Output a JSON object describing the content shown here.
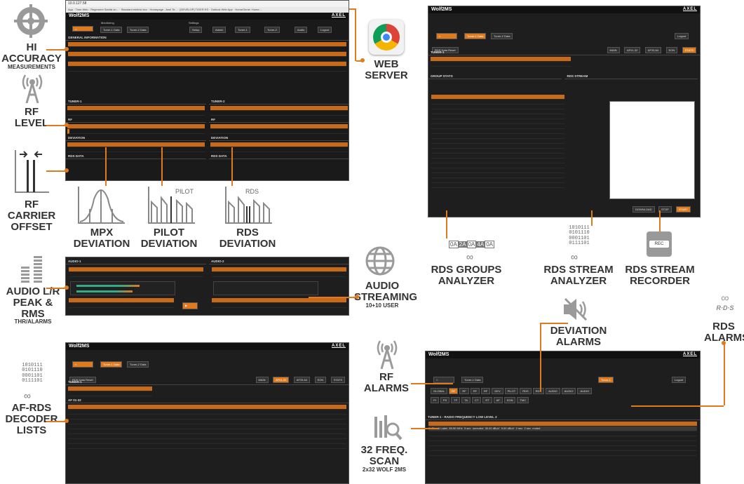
{
  "browser": {
    "url": "10.0.127.58",
    "bookmarks": [
      "App",
      "Time Web",
      "Regement Sanità on...",
      "Standard elettrici ecc",
      "Homepage - Axel Te...",
      "[DEVELOP] TIGER ES",
      "Outlook Web App",
      "HomeGenie: Home..."
    ]
  },
  "app": {
    "title": "Wolf2MS",
    "brand": "AXEL",
    "monitoring": "Monitoring",
    "settings": "Settings",
    "tabs": [
      "Tuner-1 Data",
      "Tuner-2 Data"
    ],
    "settings_buttons": [
      "Setup",
      "Admin",
      "Tuner-1",
      "Tuner-2",
      "Audio"
    ],
    "logout": "Logout"
  },
  "features": {
    "hi_accuracy": {
      "t": "HI",
      "t2": "ACCURACY",
      "s": "MEASUREMENTS"
    },
    "rf_level": {
      "t": "RF",
      "t2": "LEVEL"
    },
    "rf_carrier": {
      "t": "RF CARRIER",
      "t2": "OFFSET"
    },
    "mpx": {
      "t": "MPX",
      "t2": "DEVIATION"
    },
    "pilot": {
      "t": "PILOT",
      "t2": "DEVIATION",
      "label": "PILOT"
    },
    "rds": {
      "t": "RDS",
      "t2": "DEVIATION",
      "label": "RDS"
    },
    "audio_lr": {
      "t": "AUDIO L/R",
      "t2": "PEAK & RMS",
      "s": "THR/ALARMS"
    },
    "audio_streaming": {
      "t": "AUDIO",
      "t2": "STREAMING",
      "s": "10+10 USER"
    },
    "af_rds": {
      "t": "AF-RDS",
      "t2": "DECODER",
      "t3": "LISTS",
      "bits": "1010111\n0101110\n0001101\n0111101"
    },
    "web_server": {
      "t": "WEB",
      "t2": "SERVER"
    },
    "rds_groups": {
      "t": "RDS GROUPS",
      "t2": "ANALYZER",
      "chips": [
        "0A",
        "2A",
        "0A",
        "4A",
        "0A"
      ]
    },
    "rds_stream": {
      "t": "RDS STREAM",
      "t2": "ANALYZER",
      "bits": "1010111\n0101110\n0001101\n0111101"
    },
    "rds_recorder": {
      "t": "RDS STREAM",
      "t2": "RECORDER",
      "rec": "REC"
    },
    "deviation_alarms": {
      "t": "DEVIATION",
      "t2": "ALARMS"
    },
    "rds_alarms": {
      "t": "RDS",
      "t2": "ALARMS",
      "logo": "R·D·S"
    },
    "rf_alarms": {
      "t": "RF",
      "t2": "ALARMS"
    },
    "freq_scan": {
      "t": "32 FREQ.",
      "t2": "SCAN",
      "s": "2x32 WOLF 2MS"
    }
  },
  "panels": {
    "general": "GENERAL INFORMATION",
    "tuner1": "TUNER-1",
    "tuner2": "TUNER-2",
    "rf": "RF",
    "deviation": "DEVIATION",
    "rds_data": "RDS DATA",
    "audio1": "AUDIO-1",
    "audio2": "AUDIO-2",
    "group_stats": "GROUP STATS",
    "rds_stream": "RDS STREAM",
    "af": "AF 01-32",
    "alarms_title": "TUNER-1 - RADIO FREQUENCY LOW LEVEL 2",
    "rds_data_reset": "RDS Data Reset",
    "tabs_right": [
      "MAIN",
      "AF01-32",
      "AF33-64",
      "EON",
      "STATS"
    ],
    "status_badges": [
      "STEREO",
      "TUNED",
      "RDS"
    ],
    "download": "DOWNLOAD",
    "stop": "STOP",
    "start": "START",
    "alarm_tabs": [
      "GLOBAL",
      "RF",
      "RF",
      "RF",
      "RF",
      "DEV",
      "PILOT",
      "RDS",
      "RDS",
      "AUDIO",
      "AUDIO",
      "AUDIO",
      "AUDIO",
      "PI",
      "PS",
      "TP",
      "TA",
      "CT",
      "RT",
      "AF",
      "EON",
      "PI",
      "TMC",
      "RT"
    ],
    "alarm_row": [
      "1",
      "Chan1 Label",
      "89.50 MHz",
      "5 sec",
      "unmuted",
      "30.00 dBuV",
      "5.00 dBuV",
      "2 sec",
      "2 sec",
      "muted"
    ]
  }
}
